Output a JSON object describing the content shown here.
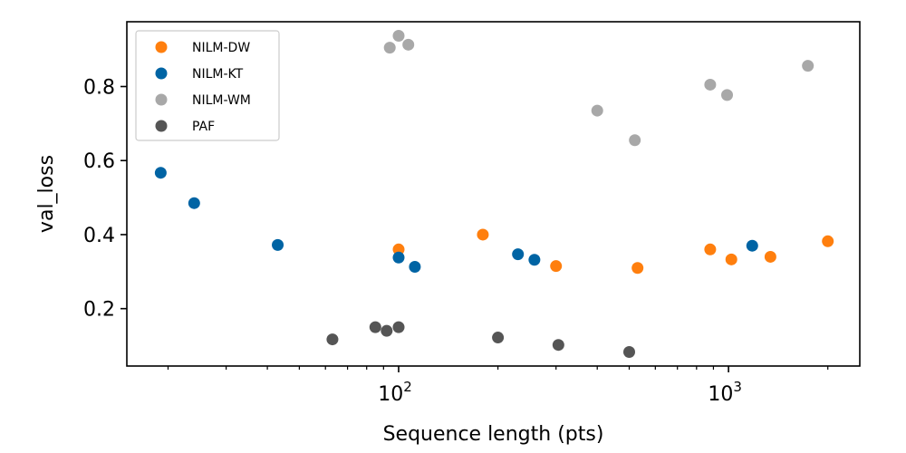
{
  "chart_data": {
    "type": "scatter",
    "xlabel": "Sequence length (pts)",
    "ylabel": "val_loss",
    "xscale": "log",
    "xlim": [
      15,
      2500
    ],
    "ylim": [
      0.045,
      0.975
    ],
    "xticks": [
      {
        "value": 100,
        "label": "10",
        "sup": "2"
      },
      {
        "value": 1000,
        "label": "10",
        "sup": "3"
      }
    ],
    "yticks": [
      {
        "value": 0.2,
        "label": "0.2"
      },
      {
        "value": 0.4,
        "label": "0.4"
      },
      {
        "value": 0.6,
        "label": "0.6"
      },
      {
        "value": 0.8,
        "label": "0.8"
      }
    ],
    "legend": "top-left",
    "grid": false,
    "series": [
      {
        "name": "NILM-DW",
        "color": "#ff7f0e",
        "points": [
          {
            "x": 100,
            "y": 0.36
          },
          {
            "x": 180,
            "y": 0.4
          },
          {
            "x": 300,
            "y": 0.315
          },
          {
            "x": 530,
            "y": 0.31
          },
          {
            "x": 880,
            "y": 0.36
          },
          {
            "x": 1020,
            "y": 0.333
          },
          {
            "x": 1340,
            "y": 0.34
          },
          {
            "x": 2000,
            "y": 0.382
          }
        ]
      },
      {
        "name": "NILM-KT",
        "color": "#0064a4",
        "points": [
          {
            "x": 19,
            "y": 0.567
          },
          {
            "x": 24,
            "y": 0.485
          },
          {
            "x": 43,
            "y": 0.372
          },
          {
            "x": 100,
            "y": 0.338
          },
          {
            "x": 112,
            "y": 0.313
          },
          {
            "x": 230,
            "y": 0.347
          },
          {
            "x": 258,
            "y": 0.332
          },
          {
            "x": 1180,
            "y": 0.37
          }
        ]
      },
      {
        "name": "NILM-WM",
        "color": "#a8a8a8",
        "points": [
          {
            "x": 94,
            "y": 0.905
          },
          {
            "x": 100,
            "y": 0.937
          },
          {
            "x": 107,
            "y": 0.913
          },
          {
            "x": 400,
            "y": 0.735
          },
          {
            "x": 520,
            "y": 0.655
          },
          {
            "x": 880,
            "y": 0.805
          },
          {
            "x": 990,
            "y": 0.777
          },
          {
            "x": 1740,
            "y": 0.856
          }
        ]
      },
      {
        "name": "PAF",
        "color": "#555555",
        "points": [
          {
            "x": 63,
            "y": 0.117
          },
          {
            "x": 85,
            "y": 0.15
          },
          {
            "x": 92,
            "y": 0.14
          },
          {
            "x": 100,
            "y": 0.15
          },
          {
            "x": 200,
            "y": 0.122
          },
          {
            "x": 305,
            "y": 0.102
          },
          {
            "x": 500,
            "y": 0.083
          }
        ]
      }
    ]
  }
}
